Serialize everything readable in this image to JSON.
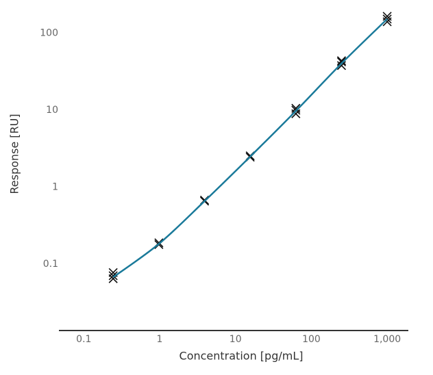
{
  "chart_data": {
    "type": "scatter",
    "x_label": "Concentration [pg/mL]",
    "y_label": "Response [RU]",
    "x_scale": "log",
    "y_scale": "log",
    "grid": false,
    "xlim": [
      0.047,
      1900
    ],
    "ylim": [
      0.0138,
      270
    ],
    "xticks": [
      0.1,
      1,
      10,
      100,
      {
        "value": 1000,
        "label": "1,000"
      }
    ],
    "yticks": [
      0.1,
      1,
      10,
      100
    ],
    "series": [
      {
        "type": "scatter",
        "marker": "x",
        "color": "#111111",
        "x": [
          0.244,
          0.244,
          0.244,
          0.977,
          0.977,
          3.906,
          3.906,
          15.625,
          15.625,
          62.5,
          62.5,
          62.5,
          250,
          250,
          250,
          1000,
          1000,
          1000
        ],
        "values": [
          0.078,
          0.071,
          0.065,
          0.19,
          0.18,
          0.68,
          0.66,
          2.56,
          2.46,
          10.6,
          10.0,
          9.0,
          44,
          42.4,
          38,
          166,
          153,
          141
        ]
      },
      {
        "type": "line",
        "color": "#1a7a9a",
        "x": [
          0.244,
          0.977,
          3.906,
          15.625,
          62.5,
          250,
          1000
        ],
        "values": [
          0.068,
          0.184,
          0.66,
          2.5,
          9.8,
          40.5,
          153
        ]
      }
    ]
  }
}
